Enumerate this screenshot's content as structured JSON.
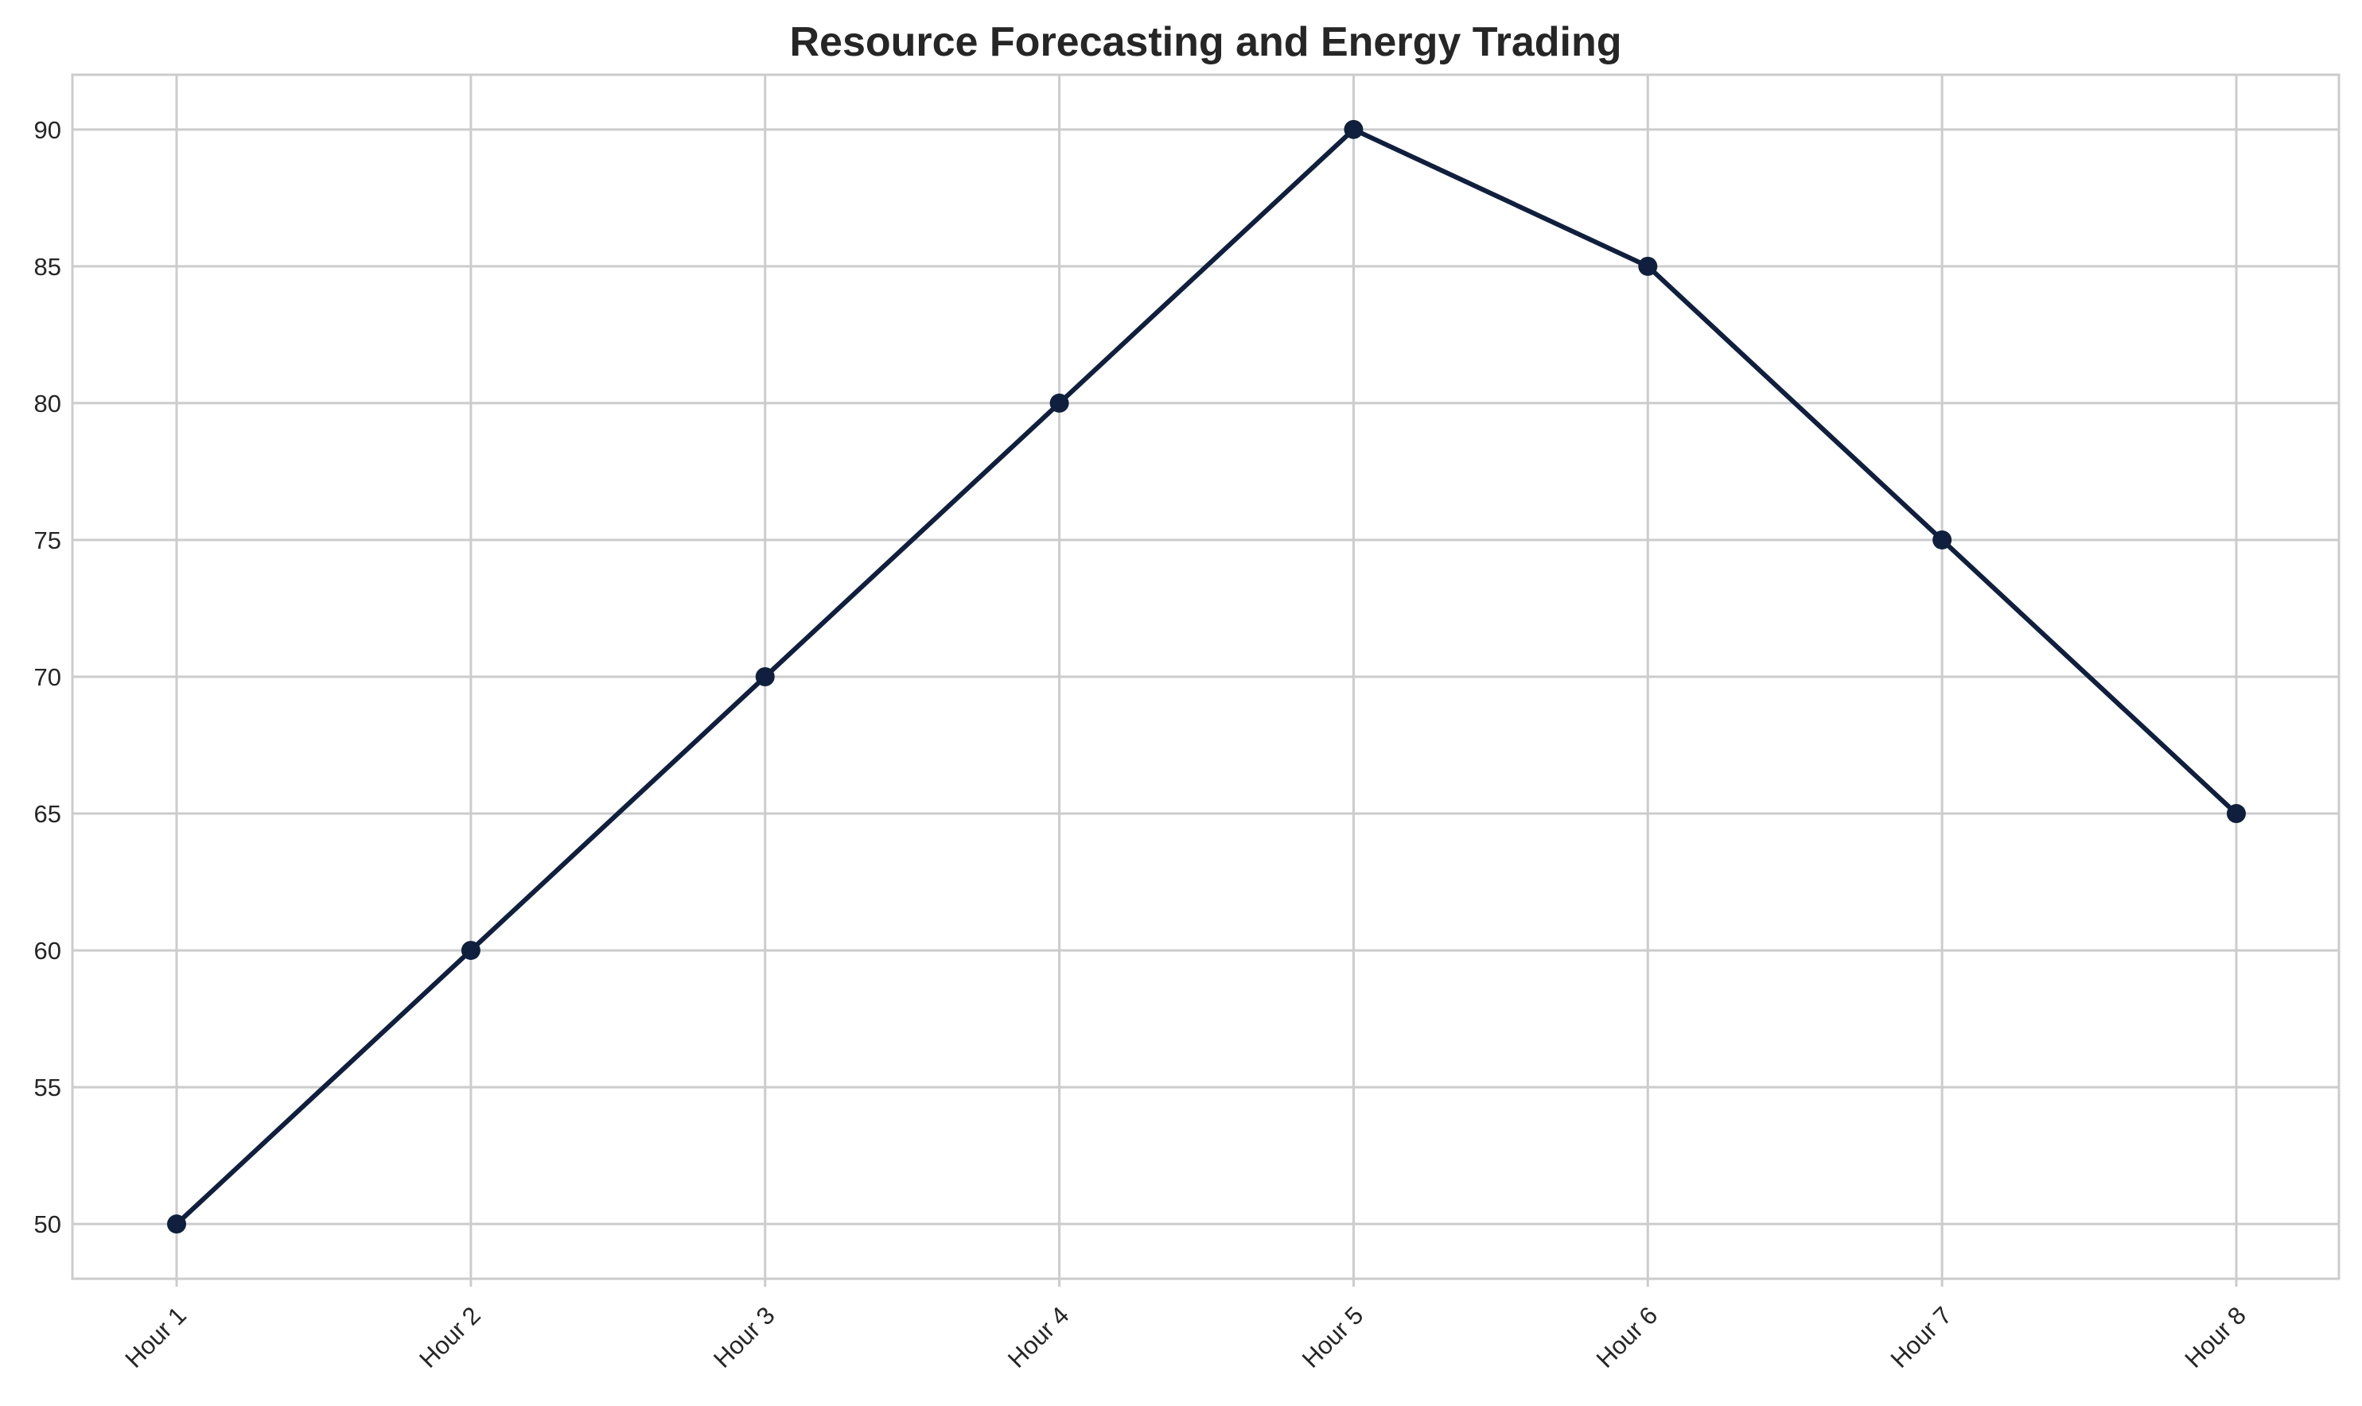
{
  "chart_data": {
    "type": "line",
    "title": "Resource Forecasting and Energy Trading",
    "xlabel": "",
    "ylabel": "",
    "categories": [
      "Hour 1",
      "Hour 2",
      "Hour 3",
      "Hour 4",
      "Hour 5",
      "Hour 6",
      "Hour 7",
      "Hour 8"
    ],
    "series": [
      {
        "values": [
          50,
          60,
          70,
          80,
          90,
          85,
          75,
          65
        ],
        "color": "#0f1f3d",
        "marker": "circle"
      }
    ],
    "yticks": [
      50,
      55,
      60,
      65,
      70,
      75,
      80,
      85,
      90
    ],
    "ylim": [
      48,
      92
    ],
    "grid": true,
    "legend": "none"
  }
}
